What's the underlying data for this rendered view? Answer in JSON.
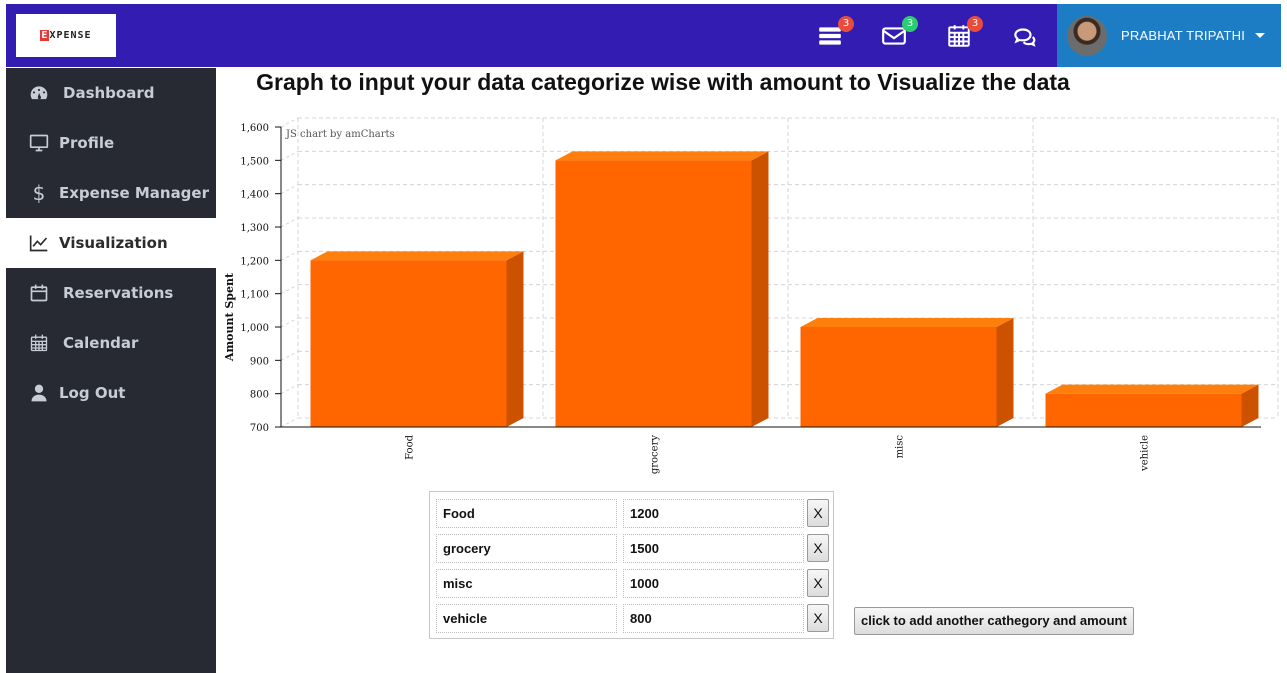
{
  "header": {
    "logo_text": "EXPENSE",
    "notifications": [
      {
        "icon": "tasks-icon",
        "count": "3",
        "badge_color": "#e74c3c"
      },
      {
        "icon": "envelope-icon",
        "count": "3",
        "badge_color": "#2ecc71"
      },
      {
        "icon": "calendar-icon",
        "count": "3",
        "badge_color": "#e74c3c"
      },
      {
        "icon": "chat-icon"
      }
    ],
    "user_name": "PRABHAT TRIPATHI"
  },
  "sidebar": {
    "items": [
      {
        "label": "Dashboard",
        "icon": "dashboard-icon",
        "active": false
      },
      {
        "label": "Profile",
        "icon": "monitor-icon",
        "active": false
      },
      {
        "label": "Expense Manager",
        "icon": "dollar-icon",
        "active": false
      },
      {
        "label": "Visualization",
        "icon": "line-chart-icon",
        "active": true
      },
      {
        "label": "Reservations",
        "icon": "calendar-icon",
        "active": false
      },
      {
        "label": "Calendar",
        "icon": "calendar-grid-icon",
        "active": false
      },
      {
        "label": "Log Out",
        "icon": "user-icon",
        "active": false
      }
    ]
  },
  "main": {
    "title": "Graph to input your data categorize wise with amount to Visualize the data",
    "credit": "JS chart by amCharts",
    "add_button_label": "click to add another cathegory and amount",
    "delete_label": "X"
  },
  "rows": [
    {
      "category": "Food",
      "amount": "1200"
    },
    {
      "category": "grocery",
      "amount": "1500"
    },
    {
      "category": "misc",
      "amount": "1000"
    },
    {
      "category": "vehicle",
      "amount": "800"
    }
  ],
  "colors": {
    "header_bg": "#321cb2",
    "user_box_bg": "#1c7dc4",
    "sidebar_bg": "#272a33",
    "bar_front": "#ff6600",
    "bar_top": "#ff7f0e",
    "bar_side": "#cc5200"
  },
  "chart_data": {
    "type": "bar",
    "categories": [
      "Food",
      "grocery",
      "misc",
      "vehicle"
    ],
    "values": [
      1200,
      1500,
      1000,
      800
    ],
    "title": "",
    "xlabel": "",
    "ylabel": "Amount Spent",
    "ylim": [
      700,
      1600
    ],
    "yticks": [
      "700",
      "800",
      "900",
      "1,000",
      "1,100",
      "1,200",
      "1,300",
      "1,400",
      "1,500",
      "1,600"
    ],
    "grid": true,
    "style": "3d-column"
  }
}
